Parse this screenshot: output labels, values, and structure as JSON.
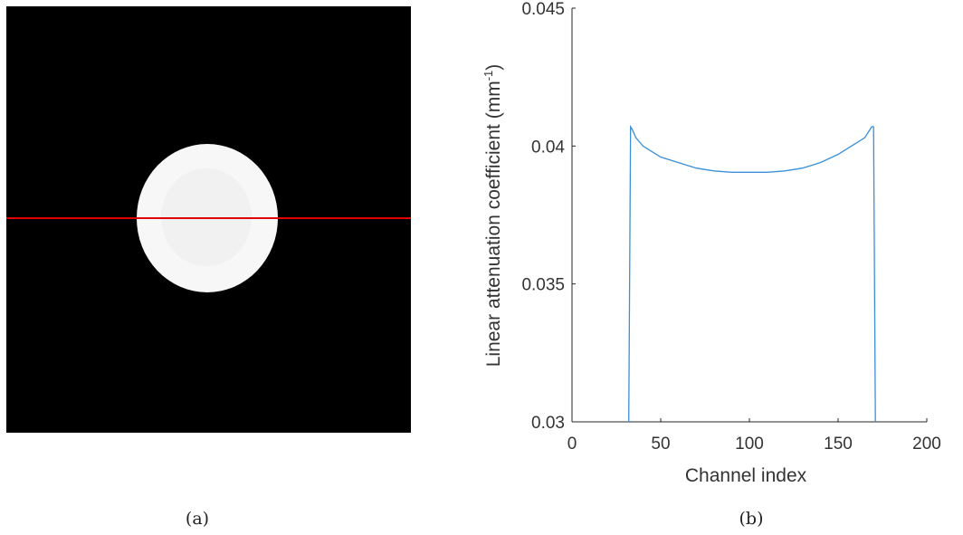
{
  "panel_a": {
    "caption": "(a)"
  },
  "panel_b": {
    "caption": "(b)"
  },
  "chart_data": {
    "type": "line",
    "xlabel": "Channel index",
    "ylabel": "Linear attenuation coefficient (mm",
    "ylabel_sup": "-1",
    "ylabel_close": ")",
    "xlim": [
      0,
      200
    ],
    "ylim": [
      0.03,
      0.045
    ],
    "xticks": [
      0,
      50,
      100,
      150,
      200
    ],
    "xtick_labels": [
      "0",
      "50",
      "100",
      "150",
      "200"
    ],
    "yticks": [
      0.03,
      0.035,
      0.04,
      0.045
    ],
    "ytick_labels": [
      "0.03",
      "0.035",
      "0.04",
      "0.045"
    ],
    "grid": false,
    "line_color": "#3a8fd6",
    "series": [
      {
        "x": [
          32,
          33,
          34,
          36,
          40,
          45,
          50,
          60,
          70,
          80,
          90,
          100,
          110,
          120,
          130,
          140,
          150,
          155,
          160,
          165,
          167,
          169,
          170,
          171
        ],
        "y": [
          0.03,
          0.0407,
          0.0406,
          0.0403,
          0.04,
          0.0398,
          0.0396,
          0.0394,
          0.0392,
          0.0391,
          0.03905,
          0.03905,
          0.03905,
          0.0391,
          0.0392,
          0.0394,
          0.0397,
          0.0399,
          0.0401,
          0.0403,
          0.0405,
          0.0407,
          0.0407,
          0.03
        ]
      }
    ]
  }
}
